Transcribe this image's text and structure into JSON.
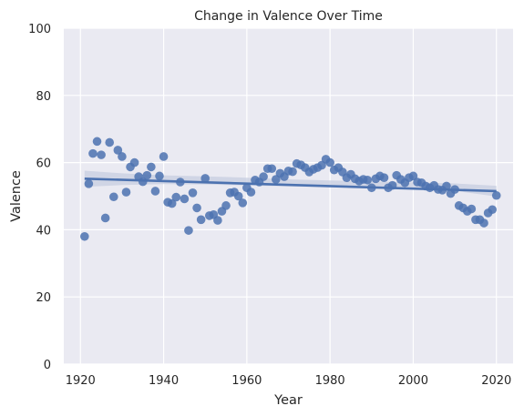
{
  "chart_data": {
    "type": "scatter",
    "title": "Change in Valence Over Time",
    "xlabel": "Year",
    "ylabel": "Valence",
    "xlim": [
      1916,
      2024
    ],
    "ylim": [
      0,
      100
    ],
    "xticks": [
      1920,
      1940,
      1960,
      1980,
      2000,
      2020
    ],
    "yticks": [
      0,
      20,
      40,
      60,
      80,
      100
    ],
    "grid": true,
    "background": "#eaeaf2",
    "grid_color": "#ffffff",
    "point_color": "#4c72b0",
    "line_color": "#4c72b0",
    "ci_color": "#c7cde0",
    "points": [
      [
        1921,
        38
      ],
      [
        1922,
        53.7
      ],
      [
        1923,
        62.7
      ],
      [
        1924,
        66.3
      ],
      [
        1925,
        62.3
      ],
      [
        1926,
        43.5
      ],
      [
        1927,
        66
      ],
      [
        1928,
        49.8
      ],
      [
        1929,
        63.7
      ],
      [
        1930,
        61.8
      ],
      [
        1931,
        51.2
      ],
      [
        1932,
        58.7
      ],
      [
        1933,
        60
      ],
      [
        1934,
        55.8
      ],
      [
        1935,
        54.3
      ],
      [
        1936,
        56.2
      ],
      [
        1937,
        58.7
      ],
      [
        1938,
        51.5
      ],
      [
        1939,
        56
      ],
      [
        1940,
        61.8
      ],
      [
        1941,
        48.2
      ],
      [
        1942,
        47.8
      ],
      [
        1943,
        49.7
      ],
      [
        1944,
        54.2
      ],
      [
        1945,
        49.2
      ],
      [
        1946,
        39.8
      ],
      [
        1947,
        51
      ],
      [
        1948,
        46.5
      ],
      [
        1949,
        43
      ],
      [
        1950,
        55.3
      ],
      [
        1951,
        44.2
      ],
      [
        1952,
        44.5
      ],
      [
        1953,
        42.8
      ],
      [
        1954,
        45.5
      ],
      [
        1955,
        47.2
      ],
      [
        1956,
        51
      ],
      [
        1957,
        51.2
      ],
      [
        1958,
        50
      ],
      [
        1959,
        48
      ],
      [
        1960,
        52.5
      ],
      [
        1961,
        51.2
      ],
      [
        1962,
        54.8
      ],
      [
        1963,
        54.2
      ],
      [
        1964,
        55.8
      ],
      [
        1965,
        58.2
      ],
      [
        1966,
        58.2
      ],
      [
        1967,
        55
      ],
      [
        1968,
        56.8
      ],
      [
        1969,
        55.8
      ],
      [
        1970,
        57.5
      ],
      [
        1971,
        57.3
      ],
      [
        1972,
        59.7
      ],
      [
        1973,
        59.3
      ],
      [
        1974,
        58.5
      ],
      [
        1975,
        57.2
      ],
      [
        1976,
        58
      ],
      [
        1977,
        58.5
      ],
      [
        1978,
        59.2
      ],
      [
        1979,
        61
      ],
      [
        1980,
        60
      ],
      [
        1981,
        57.8
      ],
      [
        1982,
        58.5
      ],
      [
        1983,
        57.2
      ],
      [
        1984,
        55.5
      ],
      [
        1985,
        56.5
      ],
      [
        1986,
        55.2
      ],
      [
        1987,
        54.5
      ],
      [
        1988,
        55
      ],
      [
        1989,
        54.8
      ],
      [
        1990,
        52.5
      ],
      [
        1991,
        55.2
      ],
      [
        1992,
        56
      ],
      [
        1993,
        55.5
      ],
      [
        1994,
        52.5
      ],
      [
        1995,
        53.2
      ],
      [
        1996,
        56.2
      ],
      [
        1997,
        55
      ],
      [
        1998,
        54
      ],
      [
        1999,
        55.5
      ],
      [
        2000,
        56
      ],
      [
        2001,
        54.2
      ],
      [
        2002,
        54
      ],
      [
        2003,
        53
      ],
      [
        2004,
        52.5
      ],
      [
        2005,
        53.2
      ],
      [
        2006,
        52
      ],
      [
        2007,
        51.8
      ],
      [
        2008,
        53
      ],
      [
        2009,
        50.8
      ],
      [
        2010,
        52
      ],
      [
        2011,
        47.2
      ],
      [
        2012,
        46.5
      ],
      [
        2013,
        45.5
      ],
      [
        2014,
        46.2
      ],
      [
        2015,
        43
      ],
      [
        2016,
        43
      ],
      [
        2017,
        42
      ],
      [
        2018,
        45
      ],
      [
        2019,
        46
      ],
      [
        2020,
        50.2
      ]
    ],
    "trend": {
      "x": [
        1921,
        2020
      ],
      "y": [
        55.2,
        51.5
      ]
    },
    "ci": {
      "x": [
        1921,
        1930,
        1940,
        1950,
        1960,
        1970,
        1980,
        1990,
        2000,
        2010,
        2020
      ],
      "lower": [
        52.8,
        53.3,
        53.6,
        53.5,
        53.2,
        52.9,
        52.6,
        52.4,
        52.1,
        51.6,
        49.9
      ],
      "upper": [
        57.6,
        56.8,
        56.2,
        55.9,
        55.5,
        55.0,
        54.7,
        54.4,
        54.1,
        53.8,
        53.1
      ]
    }
  }
}
